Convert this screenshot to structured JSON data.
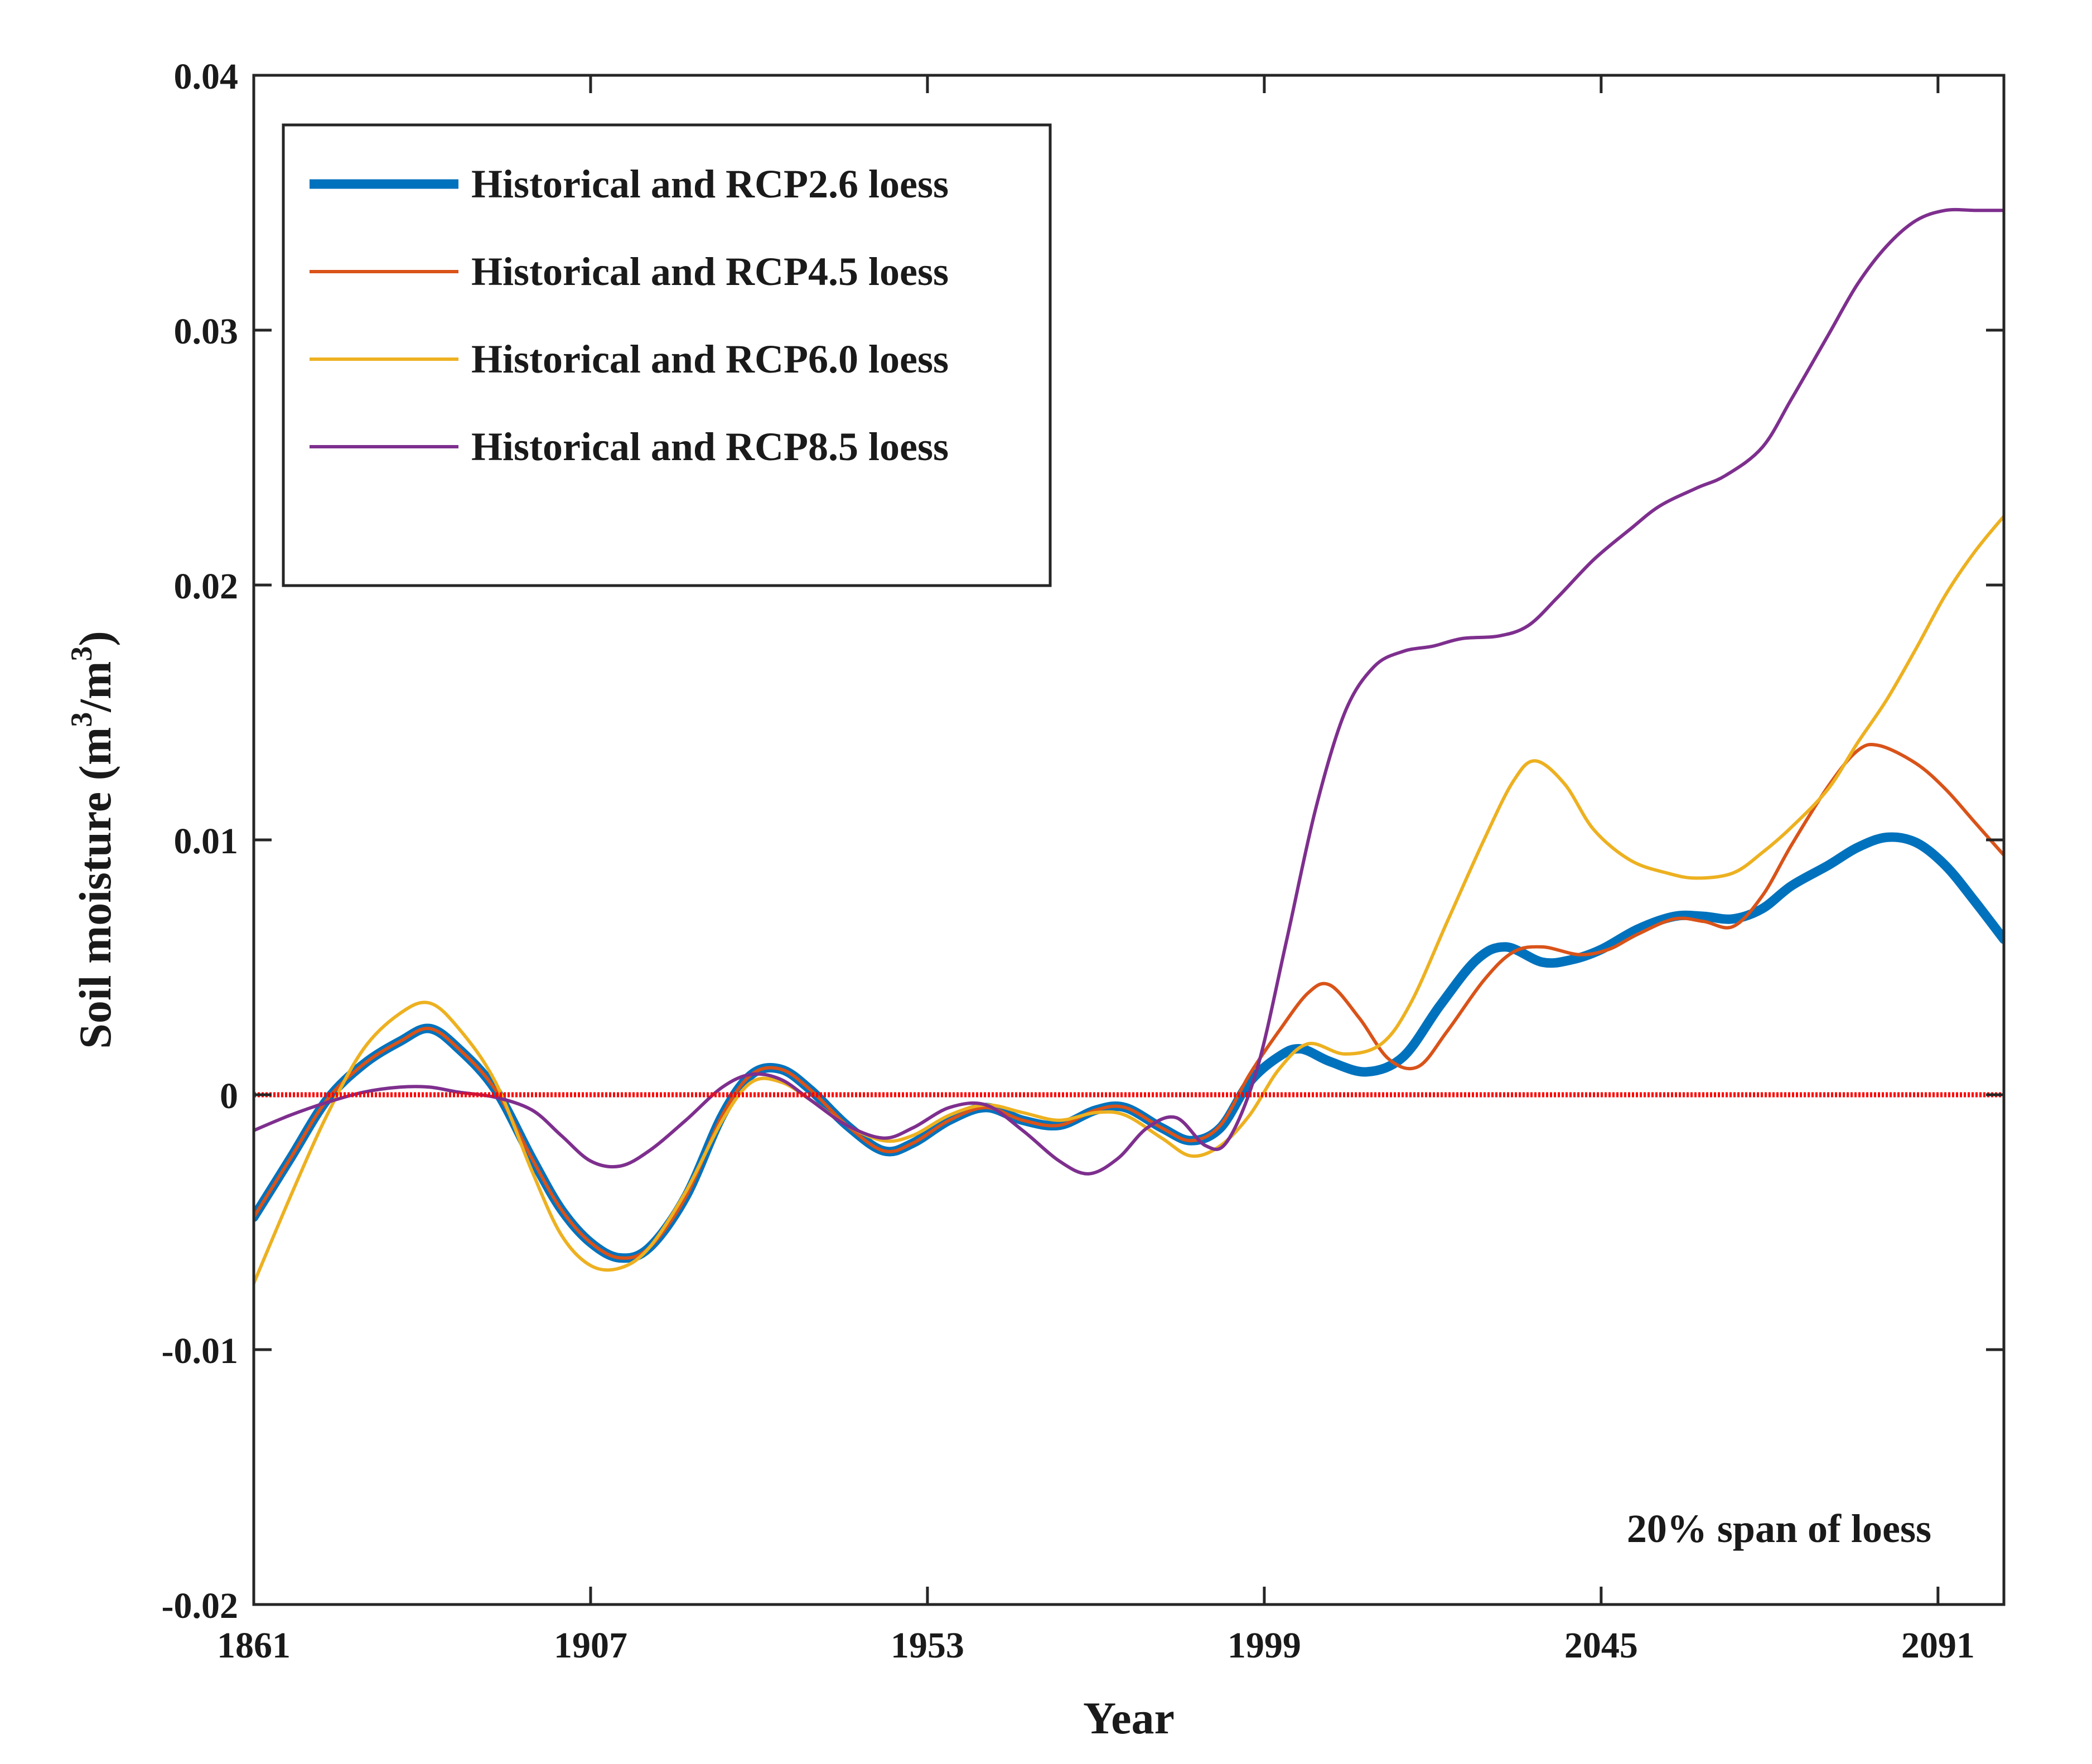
{
  "chart_data": {
    "type": "line",
    "title": "",
    "xlabel": "Year",
    "ylabel_main": "Soil moisture (m",
    "ylabel_sup1": "3",
    "ylabel_mid": "/m",
    "ylabel_sup2": "3",
    "ylabel_end": ")",
    "xlim": [
      1861,
      2100
    ],
    "ylim": [
      -0.02,
      0.04
    ],
    "xticks": [
      1861,
      1907,
      1953,
      1999,
      2045,
      2091
    ],
    "xtick_labels": [
      "1861",
      "1907",
      "1953",
      "1999",
      "2045",
      "2091"
    ],
    "yticks": [
      -0.02,
      -0.01,
      0,
      0.01,
      0.02,
      0.03,
      0.04
    ],
    "ytick_labels": [
      "-0.02",
      "-0.01",
      "0",
      "0.01",
      "0.02",
      "0.03",
      "0.04"
    ],
    "grid": false,
    "legend_position": "top-left",
    "annotation": "20% span of loess",
    "reference_line": {
      "y": 0,
      "color": "#ff0000"
    },
    "series": [
      {
        "name": "Historical and RCP2.6 loess",
        "color": "#0072bd",
        "weight": "thick",
        "points": [
          [
            1861,
            -0.0048
          ],
          [
            1866,
            -0.0025
          ],
          [
            1871,
            -0.0002
          ],
          [
            1876,
            0.0012
          ],
          [
            1881,
            0.0021
          ],
          [
            1885,
            0.0026
          ],
          [
            1889,
            0.0018
          ],
          [
            1894,
            0.0002
          ],
          [
            1899,
            -0.0025
          ],
          [
            1903,
            -0.0045
          ],
          [
            1907,
            -0.0058
          ],
          [
            1911,
            -0.0064
          ],
          [
            1915,
            -0.006
          ],
          [
            1920,
            -0.004
          ],
          [
            1925,
            -0.0008
          ],
          [
            1929,
            0.0008
          ],
          [
            1933,
            0.001
          ],
          [
            1937,
            0.0002
          ],
          [
            1942,
            -0.0012
          ],
          [
            1947,
            -0.0022
          ],
          [
            1951,
            -0.0019
          ],
          [
            1956,
            -0.001
          ],
          [
            1961,
            -0.0005
          ],
          [
            1966,
            -0.001
          ],
          [
            1971,
            -0.0012
          ],
          [
            1976,
            -0.0006
          ],
          [
            1980,
            -0.0005
          ],
          [
            1985,
            -0.0013
          ],
          [
            1989,
            -0.0018
          ],
          [
            1993,
            -0.0013
          ],
          [
            1997,
            0.0005
          ],
          [
            2001,
            0.0015
          ],
          [
            2004,
            0.0018
          ],
          [
            2008,
            0.0013
          ],
          [
            2013,
            0.0009
          ],
          [
            2018,
            0.0015
          ],
          [
            2023,
            0.0035
          ],
          [
            2028,
            0.0053
          ],
          [
            2032,
            0.0058
          ],
          [
            2037,
            0.0052
          ],
          [
            2041,
            0.0053
          ],
          [
            2045,
            0.0057
          ],
          [
            2050,
            0.0065
          ],
          [
            2055,
            0.007
          ],
          [
            2059,
            0.007
          ],
          [
            2063,
            0.0069
          ],
          [
            2067,
            0.0073
          ],
          [
            2071,
            0.0082
          ],
          [
            2076,
            0.009
          ],
          [
            2080,
            0.0097
          ],
          [
            2084,
            0.0101
          ],
          [
            2088,
            0.0099
          ],
          [
            2092,
            0.009
          ],
          [
            2096,
            0.0076
          ],
          [
            2100,
            0.0061
          ]
        ]
      },
      {
        "name": "Historical and RCP4.5 loess",
        "color": "#d95319",
        "weight": "thin",
        "points": [
          [
            1861,
            -0.0048
          ],
          [
            1866,
            -0.0025
          ],
          [
            1871,
            -0.0002
          ],
          [
            1876,
            0.0012
          ],
          [
            1881,
            0.0021
          ],
          [
            1885,
            0.0026
          ],
          [
            1889,
            0.0018
          ],
          [
            1894,
            0.0002
          ],
          [
            1899,
            -0.0025
          ],
          [
            1903,
            -0.0045
          ],
          [
            1907,
            -0.0058
          ],
          [
            1911,
            -0.0064
          ],
          [
            1915,
            -0.006
          ],
          [
            1920,
            -0.004
          ],
          [
            1925,
            -0.0008
          ],
          [
            1929,
            0.0008
          ],
          [
            1933,
            0.001
          ],
          [
            1937,
            0.0002
          ],
          [
            1942,
            -0.0012
          ],
          [
            1947,
            -0.0022
          ],
          [
            1951,
            -0.0019
          ],
          [
            1956,
            -0.001
          ],
          [
            1961,
            -0.0005
          ],
          [
            1966,
            -0.001
          ],
          [
            1971,
            -0.0012
          ],
          [
            1976,
            -0.0006
          ],
          [
            1980,
            -0.0005
          ],
          [
            1985,
            -0.0013
          ],
          [
            1989,
            -0.0018
          ],
          [
            1993,
            -0.0012
          ],
          [
            1997,
            0.0008
          ],
          [
            2001,
            0.0025
          ],
          [
            2005,
            0.004
          ],
          [
            2008,
            0.0043
          ],
          [
            2012,
            0.003
          ],
          [
            2016,
            0.0014
          ],
          [
            2020,
            0.0011
          ],
          [
            2024,
            0.0025
          ],
          [
            2029,
            0.0045
          ],
          [
            2033,
            0.0056
          ],
          [
            2037,
            0.0058
          ],
          [
            2042,
            0.0055
          ],
          [
            2046,
            0.0057
          ],
          [
            2050,
            0.0063
          ],
          [
            2055,
            0.0069
          ],
          [
            2059,
            0.0068
          ],
          [
            2063,
            0.0066
          ],
          [
            2067,
            0.0078
          ],
          [
            2071,
            0.0098
          ],
          [
            2076,
            0.0121
          ],
          [
            2080,
            0.0135
          ],
          [
            2083,
            0.0137
          ],
          [
            2088,
            0.013
          ],
          [
            2092,
            0.012
          ],
          [
            2096,
            0.0107
          ],
          [
            2100,
            0.0094
          ]
        ]
      },
      {
        "name": "Historical and RCP6.0 loess",
        "color": "#edb120",
        "weight": "thin",
        "points": [
          [
            1861,
            -0.0074
          ],
          [
            1866,
            -0.004
          ],
          [
            1871,
            -0.0008
          ],
          [
            1876,
            0.0018
          ],
          [
            1881,
            0.0032
          ],
          [
            1885,
            0.0036
          ],
          [
            1889,
            0.0026
          ],
          [
            1894,
            0.0005
          ],
          [
            1899,
            -0.003
          ],
          [
            1903,
            -0.0055
          ],
          [
            1907,
            -0.0067
          ],
          [
            1911,
            -0.0068
          ],
          [
            1915,
            -0.006
          ],
          [
            1920,
            -0.0038
          ],
          [
            1925,
            -0.001
          ],
          [
            1929,
            0.0005
          ],
          [
            1933,
            0.0005
          ],
          [
            1937,
            -0.0002
          ],
          [
            1942,
            -0.0012
          ],
          [
            1947,
            -0.0018
          ],
          [
            1951,
            -0.0016
          ],
          [
            1956,
            -0.0008
          ],
          [
            1961,
            -0.0004
          ],
          [
            1966,
            -0.0007
          ],
          [
            1971,
            -0.001
          ],
          [
            1976,
            -0.0007
          ],
          [
            1980,
            -0.0008
          ],
          [
            1985,
            -0.0017
          ],
          [
            1989,
            -0.0024
          ],
          [
            1993,
            -0.002
          ],
          [
            1997,
            -0.0008
          ],
          [
            2001,
            0.001
          ],
          [
            2005,
            0.002
          ],
          [
            2010,
            0.0016
          ],
          [
            2015,
            0.002
          ],
          [
            2019,
            0.0036
          ],
          [
            2024,
            0.0068
          ],
          [
            2029,
            0.01
          ],
          [
            2033,
            0.0123
          ],
          [
            2036,
            0.0131
          ],
          [
            2040,
            0.0122
          ],
          [
            2044,
            0.0104
          ],
          [
            2049,
            0.0092
          ],
          [
            2054,
            0.0087
          ],
          [
            2058,
            0.0085
          ],
          [
            2063,
            0.0087
          ],
          [
            2067,
            0.0095
          ],
          [
            2071,
            0.0105
          ],
          [
            2076,
            0.012
          ],
          [
            2080,
            0.0138
          ],
          [
            2084,
            0.0155
          ],
          [
            2088,
            0.0175
          ],
          [
            2092,
            0.0196
          ],
          [
            2096,
            0.0213
          ],
          [
            2100,
            0.0227
          ]
        ]
      },
      {
        "name": "Historical and RCP8.5 loess",
        "color": "#7e2f8e",
        "weight": "thin",
        "points": [
          [
            1861,
            -0.0014
          ],
          [
            1866,
            -0.0008
          ],
          [
            1871,
            -0.0003
          ],
          [
            1876,
            0.0001
          ],
          [
            1881,
            0.0003
          ],
          [
            1885,
            0.0003
          ],
          [
            1889,
            0.0001
          ],
          [
            1894,
            -0.0001
          ],
          [
            1899,
            -0.0006
          ],
          [
            1903,
            -0.0016
          ],
          [
            1907,
            -0.0026
          ],
          [
            1911,
            -0.0028
          ],
          [
            1915,
            -0.0022
          ],
          [
            1920,
            -0.001
          ],
          [
            1925,
            0.0003
          ],
          [
            1929,
            0.0008
          ],
          [
            1933,
            0.0006
          ],
          [
            1937,
            -0.0002
          ],
          [
            1942,
            -0.0012
          ],
          [
            1947,
            -0.0017
          ],
          [
            1951,
            -0.0013
          ],
          [
            1956,
            -0.0005
          ],
          [
            1961,
            -0.0004
          ],
          [
            1966,
            -0.0014
          ],
          [
            1971,
            -0.0026
          ],
          [
            1975,
            -0.0031
          ],
          [
            1979,
            -0.0025
          ],
          [
            1983,
            -0.0013
          ],
          [
            1987,
            -0.0009
          ],
          [
            1991,
            -0.002
          ],
          [
            1994,
            -0.0018
          ],
          [
            1998,
            0.001
          ],
          [
            2002,
            0.006
          ],
          [
            2006,
            0.0112
          ],
          [
            2010,
            0.015
          ],
          [
            2014,
            0.0168
          ],
          [
            2018,
            0.0174
          ],
          [
            2022,
            0.0176
          ],
          [
            2026,
            0.0179
          ],
          [
            2031,
            0.018
          ],
          [
            2035,
            0.0184
          ],
          [
            2039,
            0.0195
          ],
          [
            2044,
            0.021
          ],
          [
            2049,
            0.0222
          ],
          [
            2053,
            0.0231
          ],
          [
            2058,
            0.0238
          ],
          [
            2062,
            0.0243
          ],
          [
            2067,
            0.0254
          ],
          [
            2071,
            0.0273
          ],
          [
            2076,
            0.0298
          ],
          [
            2080,
            0.0318
          ],
          [
            2084,
            0.0333
          ],
          [
            2088,
            0.0343
          ],
          [
            2092,
            0.0347
          ],
          [
            2096,
            0.0347
          ],
          [
            2100,
            0.0347
          ]
        ]
      }
    ]
  }
}
